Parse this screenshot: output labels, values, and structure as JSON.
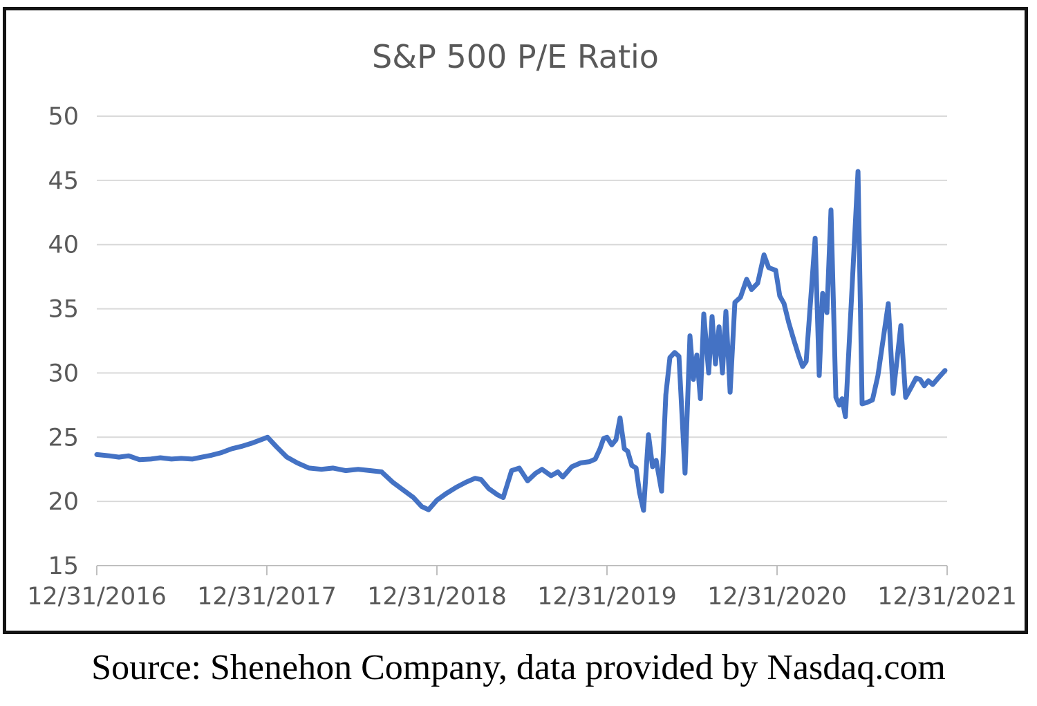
{
  "chart_data": {
    "type": "line",
    "title": "S&P 500 P/E Ratio",
    "xlabel": "",
    "ylabel": "",
    "xlim": [
      0,
      5
    ],
    "ylim": [
      15,
      50
    ],
    "grid": "horizontal",
    "legend": "none",
    "grid_color": "#d9d9d9",
    "axis_color": "#bfbfbf",
    "label_color": "#595959",
    "y_ticks": [
      15,
      20,
      25,
      30,
      35,
      40,
      45,
      50
    ],
    "x_ticks": [
      {
        "t": 0,
        "label": "12/31/2016"
      },
      {
        "t": 1,
        "label": "12/31/2017"
      },
      {
        "t": 2,
        "label": "12/31/2018"
      },
      {
        "t": 3,
        "label": "12/31/2019"
      },
      {
        "t": 4,
        "label": "12/31/2020"
      },
      {
        "t": 5,
        "label": "12/31/2021"
      }
    ],
    "series": [
      {
        "name": "S&P 500 P/E Ratio",
        "color": "#4472C4",
        "stroke_width": 7,
        "points": [
          [
            0.0,
            23.65
          ],
          [
            0.073,
            23.55
          ],
          [
            0.13,
            23.45
          ],
          [
            0.187,
            23.55
          ],
          [
            0.252,
            23.25
          ],
          [
            0.317,
            23.3
          ],
          [
            0.374,
            23.4
          ],
          [
            0.439,
            23.3
          ],
          [
            0.496,
            23.35
          ],
          [
            0.561,
            23.3
          ],
          [
            0.618,
            23.45
          ],
          [
            0.675,
            23.6
          ],
          [
            0.732,
            23.8
          ],
          [
            0.793,
            24.1
          ],
          [
            0.854,
            24.3
          ],
          [
            0.915,
            24.55
          ],
          [
            1.004,
            25.0
          ],
          [
            1.057,
            24.25
          ],
          [
            1.118,
            23.45
          ],
          [
            1.179,
            23.0
          ],
          [
            1.248,
            22.6
          ],
          [
            1.321,
            22.5
          ],
          [
            1.39,
            22.6
          ],
          [
            1.463,
            22.4
          ],
          [
            1.537,
            22.5
          ],
          [
            1.61,
            22.4
          ],
          [
            1.675,
            22.3
          ],
          [
            1.74,
            21.5
          ],
          [
            1.801,
            20.9
          ],
          [
            1.862,
            20.3
          ],
          [
            1.911,
            19.6
          ],
          [
            1.951,
            19.35
          ],
          [
            2.0,
            20.1
          ],
          [
            2.053,
            20.6
          ],
          [
            2.114,
            21.1
          ],
          [
            2.171,
            21.5
          ],
          [
            2.224,
            21.8
          ],
          [
            2.26,
            21.7
          ],
          [
            2.305,
            21.0
          ],
          [
            2.358,
            20.5
          ],
          [
            2.39,
            20.3
          ],
          [
            2.439,
            22.4
          ],
          [
            2.484,
            22.6
          ],
          [
            2.533,
            21.6
          ],
          [
            2.581,
            22.2
          ],
          [
            2.618,
            22.5
          ],
          [
            2.671,
            22.0
          ],
          [
            2.711,
            22.3
          ],
          [
            2.74,
            21.9
          ],
          [
            2.793,
            22.7
          ],
          [
            2.846,
            23.0
          ],
          [
            2.898,
            23.1
          ],
          [
            2.931,
            23.3
          ],
          [
            2.959,
            24.1
          ],
          [
            2.98,
            24.9
          ],
          [
            3.0,
            25.0
          ],
          [
            3.028,
            24.4
          ],
          [
            3.053,
            24.8
          ],
          [
            3.077,
            26.5
          ],
          [
            3.102,
            24.1
          ],
          [
            3.122,
            23.9
          ],
          [
            3.146,
            22.8
          ],
          [
            3.171,
            22.6
          ],
          [
            3.191,
            20.7
          ],
          [
            3.215,
            19.3
          ],
          [
            3.244,
            25.2
          ],
          [
            3.268,
            22.7
          ],
          [
            3.289,
            23.2
          ],
          [
            3.321,
            20.8
          ],
          [
            3.346,
            28.3
          ],
          [
            3.37,
            31.2
          ],
          [
            3.398,
            31.6
          ],
          [
            3.423,
            31.3
          ],
          [
            3.459,
            22.2
          ],
          [
            3.488,
            32.9
          ],
          [
            3.508,
            29.5
          ],
          [
            3.528,
            31.4
          ],
          [
            3.549,
            28.0
          ],
          [
            3.569,
            34.6
          ],
          [
            3.598,
            30.0
          ],
          [
            3.618,
            34.4
          ],
          [
            3.638,
            30.7
          ],
          [
            3.659,
            33.6
          ],
          [
            3.679,
            30.0
          ],
          [
            3.699,
            34.8
          ],
          [
            3.724,
            28.5
          ],
          [
            3.752,
            35.5
          ],
          [
            3.785,
            35.9
          ],
          [
            3.821,
            37.3
          ],
          [
            3.85,
            36.5
          ],
          [
            3.886,
            37.0
          ],
          [
            3.923,
            39.2
          ],
          [
            3.951,
            38.2
          ],
          [
            3.992,
            38.0
          ],
          [
            4.016,
            36.0
          ],
          [
            4.041,
            35.4
          ],
          [
            4.069,
            33.9
          ],
          [
            4.098,
            32.6
          ],
          [
            4.126,
            31.4
          ],
          [
            4.15,
            30.5
          ],
          [
            4.171,
            30.9
          ],
          [
            4.224,
            40.5
          ],
          [
            4.248,
            29.8
          ],
          [
            4.268,
            36.2
          ],
          [
            4.293,
            34.7
          ],
          [
            4.317,
            42.7
          ],
          [
            4.346,
            28.1
          ],
          [
            4.366,
            27.5
          ],
          [
            4.382,
            28.0
          ],
          [
            4.402,
            26.6
          ],
          [
            4.476,
            45.7
          ],
          [
            4.5,
            27.6
          ],
          [
            4.528,
            27.7
          ],
          [
            4.561,
            27.9
          ],
          [
            4.593,
            29.8
          ],
          [
            4.654,
            35.4
          ],
          [
            4.683,
            28.4
          ],
          [
            4.728,
            33.7
          ],
          [
            4.756,
            28.1
          ],
          [
            4.789,
            28.9
          ],
          [
            4.817,
            29.6
          ],
          [
            4.841,
            29.5
          ],
          [
            4.866,
            29.0
          ],
          [
            4.89,
            29.4
          ],
          [
            4.915,
            29.1
          ],
          [
            4.947,
            29.6
          ],
          [
            4.988,
            30.2
          ]
        ]
      }
    ]
  },
  "source_text": "Source: Shenehon Company, data provided by Nasdaq.com"
}
